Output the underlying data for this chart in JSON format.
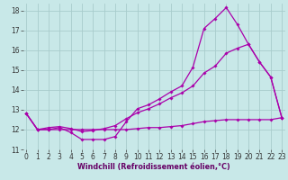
{
  "xlabel": "Windchill (Refroidissement éolien,°C)",
  "bg_color": "#c8e8e8",
  "grid_color": "#a8cccc",
  "line_color": "#aa00aa",
  "xlim": [
    -0.3,
    23.3
  ],
  "ylim": [
    11.0,
    18.35
  ],
  "xticks": [
    0,
    1,
    2,
    3,
    4,
    5,
    6,
    7,
    8,
    9,
    10,
    11,
    12,
    13,
    14,
    15,
    16,
    17,
    18,
    19,
    20,
    21,
    22,
    23
  ],
  "yticks": [
    11,
    12,
    13,
    14,
    15,
    16,
    17,
    18
  ],
  "line1_x": [
    0,
    1,
    2,
    3,
    4,
    5,
    6,
    7,
    8,
    9,
    10,
    11,
    12,
    13,
    14,
    15,
    16,
    17,
    18,
    19,
    20,
    21,
    22,
    23
  ],
  "line1_y": [
    12.8,
    12.0,
    12.0,
    12.1,
    11.85,
    11.5,
    11.5,
    11.5,
    11.65,
    12.4,
    13.05,
    13.25,
    13.55,
    13.9,
    14.2,
    15.15,
    17.1,
    17.6,
    18.15,
    17.3,
    16.3,
    15.4,
    14.65,
    12.6
  ],
  "line2_x": [
    0,
    1,
    2,
    3,
    4,
    5,
    6,
    7,
    8,
    9,
    10,
    11,
    12,
    13,
    14,
    15,
    16,
    17,
    18,
    19,
    20,
    21,
    22,
    23
  ],
  "line2_y": [
    12.8,
    12.0,
    12.1,
    12.15,
    12.05,
    11.9,
    11.95,
    12.05,
    12.2,
    12.55,
    12.85,
    13.05,
    13.3,
    13.6,
    13.85,
    14.2,
    14.85,
    15.2,
    15.85,
    16.1,
    16.3,
    15.4,
    14.65,
    12.6
  ],
  "line3_x": [
    0,
    1,
    2,
    3,
    4,
    5,
    6,
    7,
    8,
    9,
    10,
    11,
    12,
    13,
    14,
    15,
    16,
    17,
    18,
    19,
    20,
    21,
    22,
    23
  ],
  "line3_y": [
    12.8,
    12.0,
    12.0,
    12.0,
    12.0,
    12.0,
    12.0,
    12.0,
    12.0,
    12.0,
    12.05,
    12.1,
    12.1,
    12.15,
    12.2,
    12.3,
    12.4,
    12.45,
    12.5,
    12.5,
    12.5,
    12.5,
    12.5,
    12.6
  ],
  "tick_fontsize": 5.5,
  "xlabel_fontsize": 5.8,
  "marker_size": 1.8,
  "linewidth": 0.9
}
